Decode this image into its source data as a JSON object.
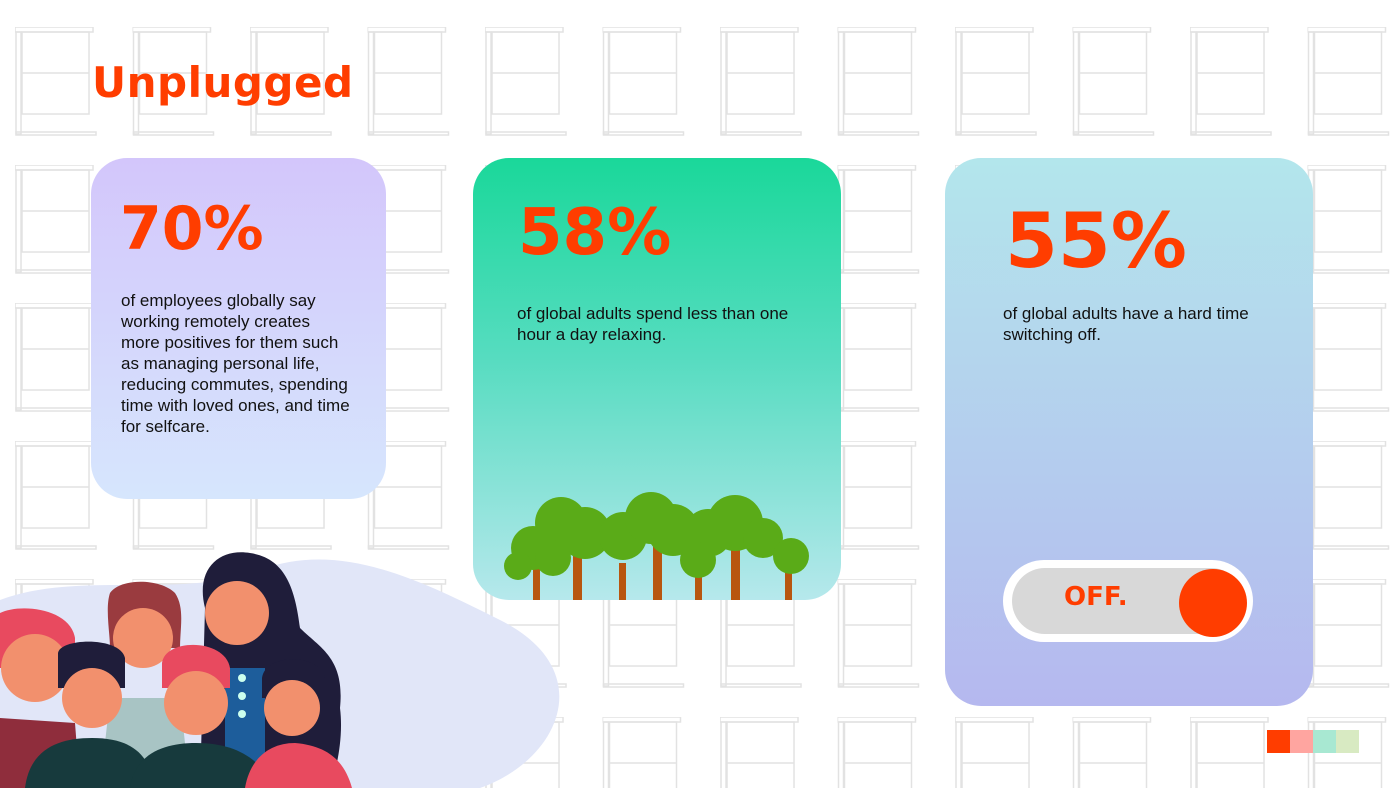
{
  "title": "Unplugged",
  "cards": [
    {
      "percent": "70%",
      "text": "of employees globally say working remotely creates more positives for them such as managing personal  life, reducing commutes, spending time with loved ones, and time for selfcare."
    },
    {
      "percent": "58%",
      "text": "of global adults spend less than one hour a day relaxing."
    },
    {
      "percent": "55%",
      "text": "of global adults have a hard time switching off."
    }
  ],
  "toggle": {
    "label": "OFF.",
    "state": "off"
  },
  "colors": {
    "accent": "#ff3d00",
    "palette": [
      "#ff3d00",
      "#ffa5a0",
      "#a8e8d2",
      "#d8eac2"
    ]
  }
}
